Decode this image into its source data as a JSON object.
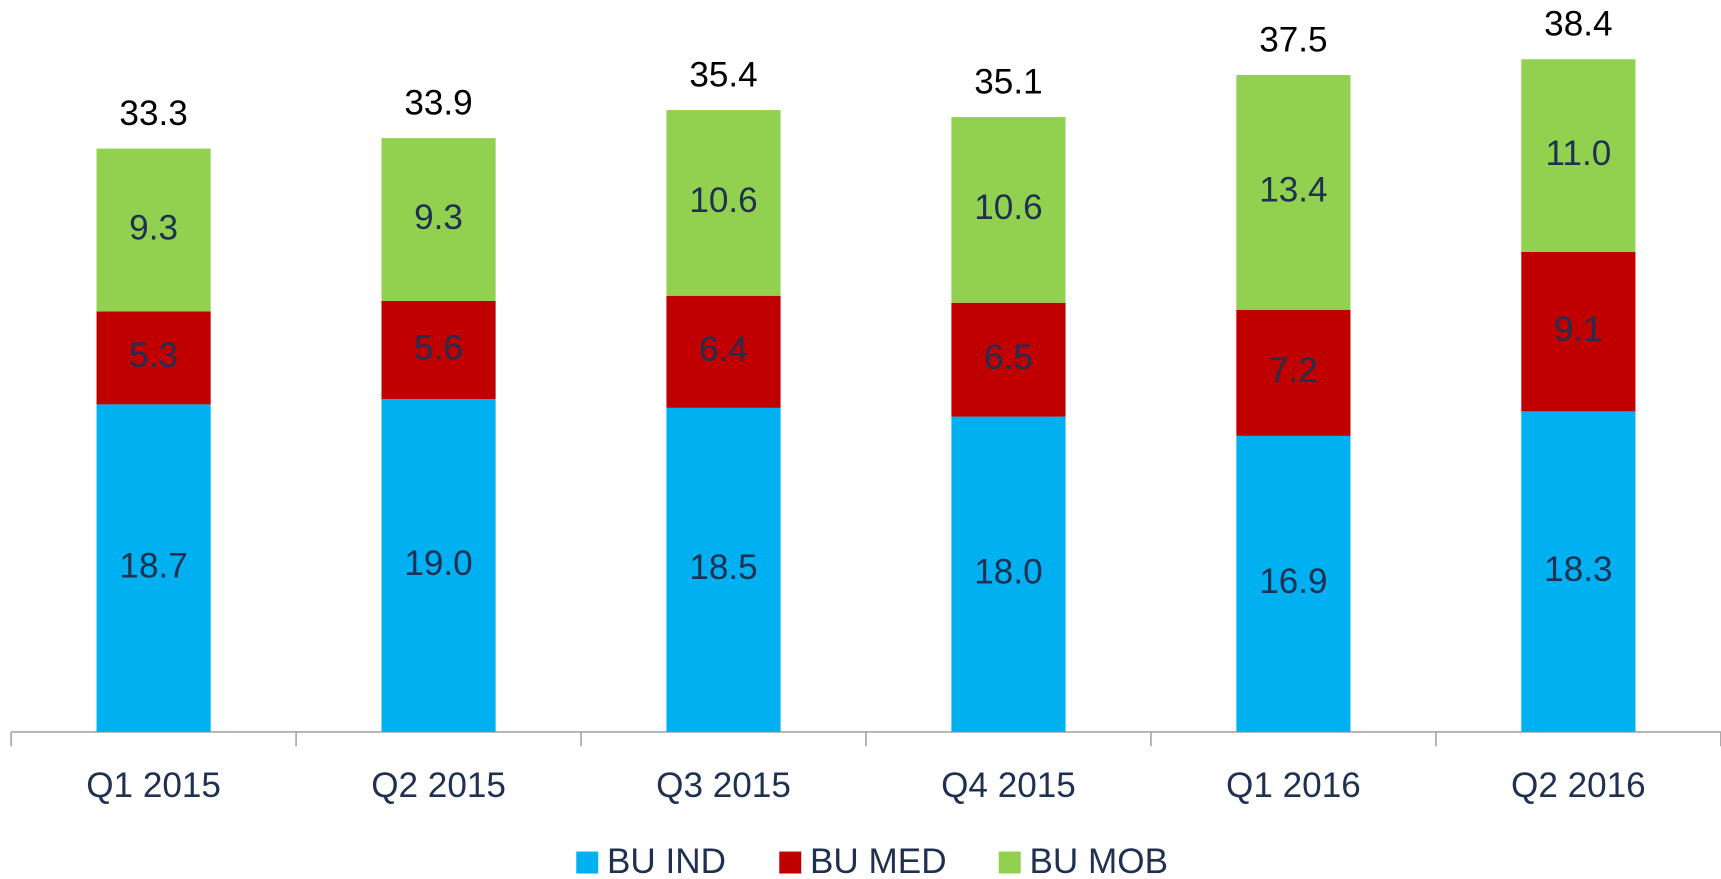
{
  "chart_data": {
    "type": "stacked_bar",
    "categories": [
      "Q1 2015",
      "Q2 2015",
      "Q3 2015",
      "Q4 2015",
      "Q1 2016",
      "Q2 2016"
    ],
    "series": [
      {
        "name": "BU IND",
        "color": "#00b0f0",
        "values": [
          18.7,
          19.0,
          18.5,
          18.0,
          16.9,
          18.3
        ],
        "value_labels": [
          "18.7",
          "19.0",
          "18.5",
          "18.0",
          "16.9",
          "18.3"
        ]
      },
      {
        "name": "BU MED",
        "color": "#c00000",
        "values": [
          5.3,
          5.6,
          6.4,
          6.5,
          7.2,
          9.1
        ]
      },
      {
        "name": "BU MOB",
        "color": "#92d050",
        "values": [
          9.3,
          9.3,
          10.6,
          10.6,
          13.4,
          11.0
        ],
        "value_labels": [
          "9.3",
          "9.3",
          "10.6",
          "10.6",
          "13.4",
          "11.0"
        ]
      }
    ],
    "totals": [
      33.3,
      33.9,
      35.4,
      35.1,
      37.5,
      38.4
    ],
    "legend": "bottom"
  }
}
